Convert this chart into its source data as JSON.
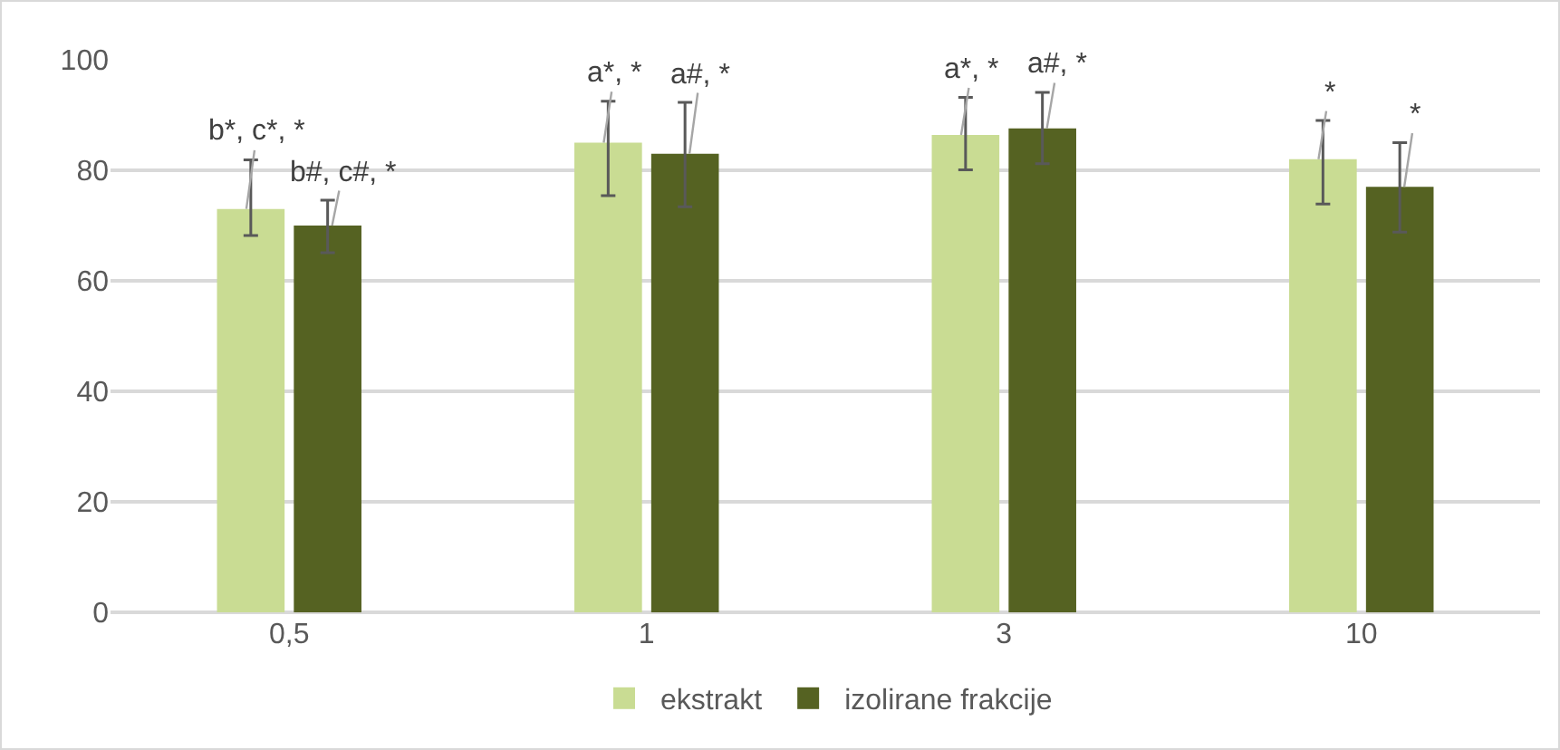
{
  "chart_data": {
    "type": "bar",
    "categories": [
      "0,5",
      "1",
      "3",
      "10"
    ],
    "series": [
      {
        "name": "ekstrakt",
        "color": "#c9dc93",
        "values": [
          73,
          85,
          86.4,
          82
        ],
        "errors": [
          [
            68.2,
            81.9
          ],
          [
            75.4,
            92.5
          ],
          [
            80.1,
            93.2
          ],
          [
            73.9,
            89
          ]
        ]
      },
      {
        "name": "izolirane frakcije",
        "color": "#556222",
        "values": [
          70,
          83,
          87.6,
          77
        ],
        "errors": [
          [
            65.1,
            74.6
          ],
          [
            73.4,
            92.3
          ],
          [
            81.2,
            94.1
          ],
          [
            68.8,
            85
          ]
        ]
      }
    ],
    "annotations": [
      {
        "text": "b*, c*, *",
        "x": "0,5",
        "y": 73
      },
      {
        "text": "b#, c#, *",
        "x": "0,5",
        "y": 70
      },
      {
        "text": "a*, *",
        "x": "1",
        "y": 85
      },
      {
        "text": "a#, *",
        "x": "1",
        "y": 83
      },
      {
        "text": "a*, *",
        "x": "3",
        "y": 86.4
      },
      {
        "text": "a#, *",
        "x": "3",
        "y": 87.6
      },
      {
        "text": "*",
        "x": "10",
        "y": 82
      },
      {
        "text": "*",
        "x": "10",
        "y": 77
      }
    ],
    "ylim": [
      0,
      100
    ],
    "yticks": [
      0,
      20,
      40,
      60,
      80,
      100
    ],
    "grid": "y",
    "legend": "bottom"
  }
}
